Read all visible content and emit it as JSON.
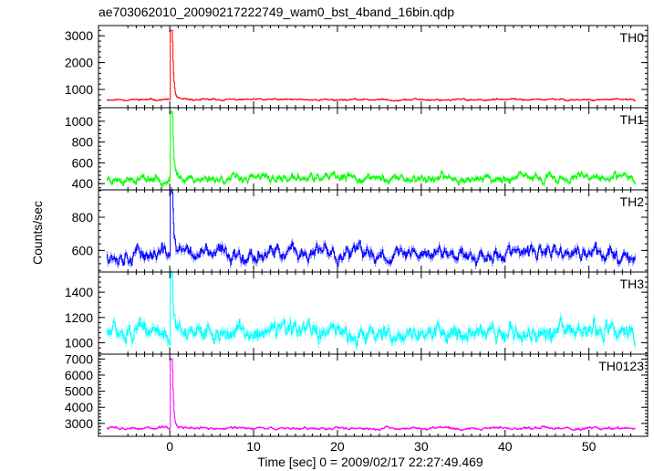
{
  "chart_data": {
    "type": "line",
    "title": "ae703062010_20090217222749_wam0_bst_4band_16bin.qdp",
    "xlabel": "Time [sec] 0 = 2009/02/17 22:27:49.469",
    "ylabel": "Counts/sec",
    "xlim": [
      -8.5,
      57
    ],
    "x_ticks": [
      0,
      10,
      20,
      30,
      40,
      50
    ],
    "grid": false,
    "x_range": [
      -7.5,
      55.5
    ],
    "x_step": 0.0625,
    "panels": [
      {
        "name": "TH0",
        "color": "#ff0000",
        "ylim": [
          320,
          3380
        ],
        "y_ticks": [
          1000,
          2000,
          3000
        ],
        "baseline": 620,
        "noise": 35,
        "peak": 3200,
        "peak_x": 0.25,
        "decay": 0.15,
        "seed": 11
      },
      {
        "name": "TH1",
        "color": "#00ff00",
        "ylim": [
          340,
          1130
        ],
        "y_ticks": [
          400,
          600,
          800,
          1000
        ],
        "baseline": 450,
        "noise": 42,
        "peak": 1090,
        "peak_x": 0.25,
        "decay": 0.15,
        "seed": 23
      },
      {
        "name": "TH2",
        "color": "#0000ff",
        "ylim": [
          470,
          965
        ],
        "y_ticks": [
          600,
          800
        ],
        "baseline": 580,
        "noise": 48,
        "peak": 960,
        "peak_x": 0.25,
        "decay": 0.15,
        "seed": 37
      },
      {
        "name": "TH3",
        "color": "#00ffff",
        "ylim": [
          910,
          1560
        ],
        "y_ticks": [
          1000,
          1200,
          1400
        ],
        "baseline": 1080,
        "noise": 75,
        "peak": 1550,
        "peak_x": 0.25,
        "decay": 0.15,
        "seed": 51
      },
      {
        "name": "TH0123",
        "color": "#ff00ff",
        "ylim": [
          2200,
          7300
        ],
        "y_ticks": [
          3000,
          4000,
          5000,
          6000,
          7000
        ],
        "baseline": 2700,
        "noise": 90,
        "peak": 7000,
        "peak_x": 0.25,
        "decay": 0.15,
        "seed": 73
      }
    ]
  }
}
